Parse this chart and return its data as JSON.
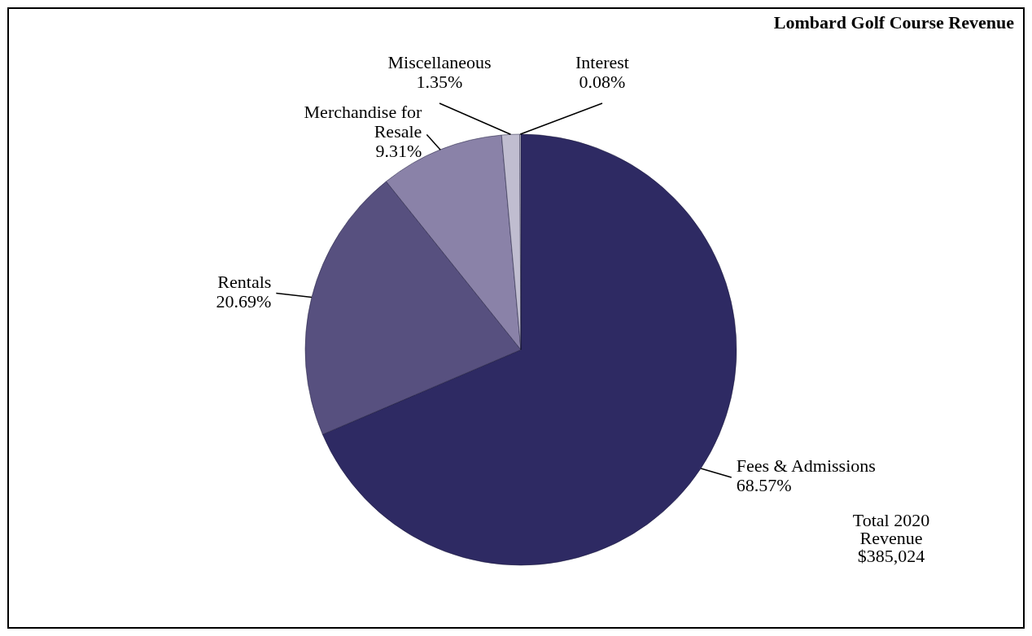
{
  "chart_data": {
    "type": "pie",
    "title": "Lombard Golf Course Revenue",
    "categories": [
      "Fees & Admissions",
      "Rentals",
      "Merchandise for\nResale",
      "Miscellaneous",
      "Interest"
    ],
    "values": [
      68.57,
      20.69,
      9.31,
      1.35,
      0.08
    ],
    "value_labels": [
      "68.57%",
      "20.69%",
      "9.31%",
      "1.35%",
      "0.08%"
    ],
    "colors": [
      "#2e2a63",
      "#57507f",
      "#8a82a8",
      "#c0bdd0",
      "#dcdbe6"
    ],
    "annotations": [
      "Total 2020\nRevenue\n$385,024"
    ]
  }
}
